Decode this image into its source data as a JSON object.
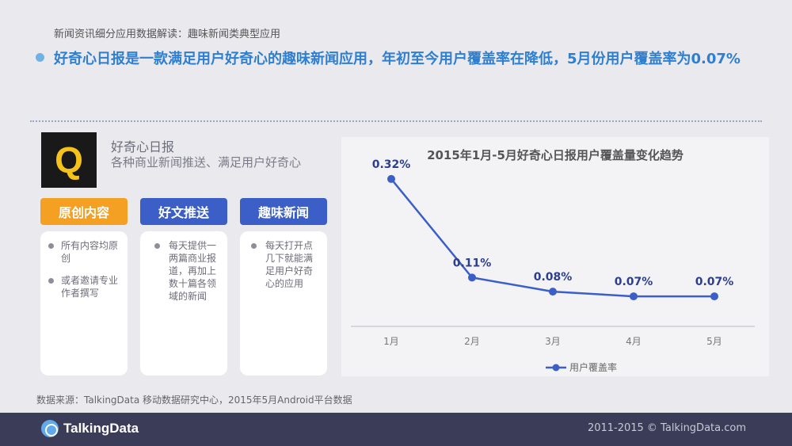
{
  "header": {
    "subtitle": "新闻资讯细分应用数据解读：趣味新闻类典型应用",
    "headline": "好奇心日报是一款满足用户好奇心的趣味新闻应用，年初至今用户覆盖率在降低，5月份用户覆盖率为0.07%"
  },
  "app": {
    "logo_letter": "Q",
    "name": "好奇心日报",
    "description": "各种商业新闻推送、满足用户好奇心"
  },
  "features": [
    {
      "title": "原创内容",
      "items": [
        "所有内容均原创",
        "或者邀请专业作者撰写"
      ]
    },
    {
      "title": "好文推送",
      "items": [
        "每天提供一两篇商业报道，再加上数十篇各领域的新闻"
      ]
    },
    {
      "title": "趣味新闻",
      "items": [
        "每天打开点几下就能满足用户好奇心的应用"
      ]
    }
  ],
  "colors": {
    "accent_blue": "#2e7fd0",
    "tag_orange": "#f4a022",
    "tag_blue": "#3b5fc6",
    "line_color": "#3b5fc6",
    "footer_bg": "#3b3c58"
  },
  "chart_data": {
    "type": "line",
    "title": "2015年1月-5月好奇心日报用户覆盖量变化趋势",
    "categories": [
      "1月",
      "2月",
      "3月",
      "4月",
      "5月"
    ],
    "series": [
      {
        "name": "用户覆盖率",
        "values": [
          0.32,
          0.11,
          0.08,
          0.07,
          0.07
        ],
        "labels": [
          "0.32%",
          "0.11%",
          "0.08%",
          "0.07%",
          "0.07%"
        ]
      }
    ],
    "ylim": [
      0,
      0.35
    ],
    "grid": false,
    "legend": "bottom"
  },
  "source": "数据来源：TalkingData 移动数据研究中心，2015年5月Android平台数据",
  "footer": {
    "brand": "TalkingData",
    "copyright": "2011-2015 © TalkingData.com"
  }
}
